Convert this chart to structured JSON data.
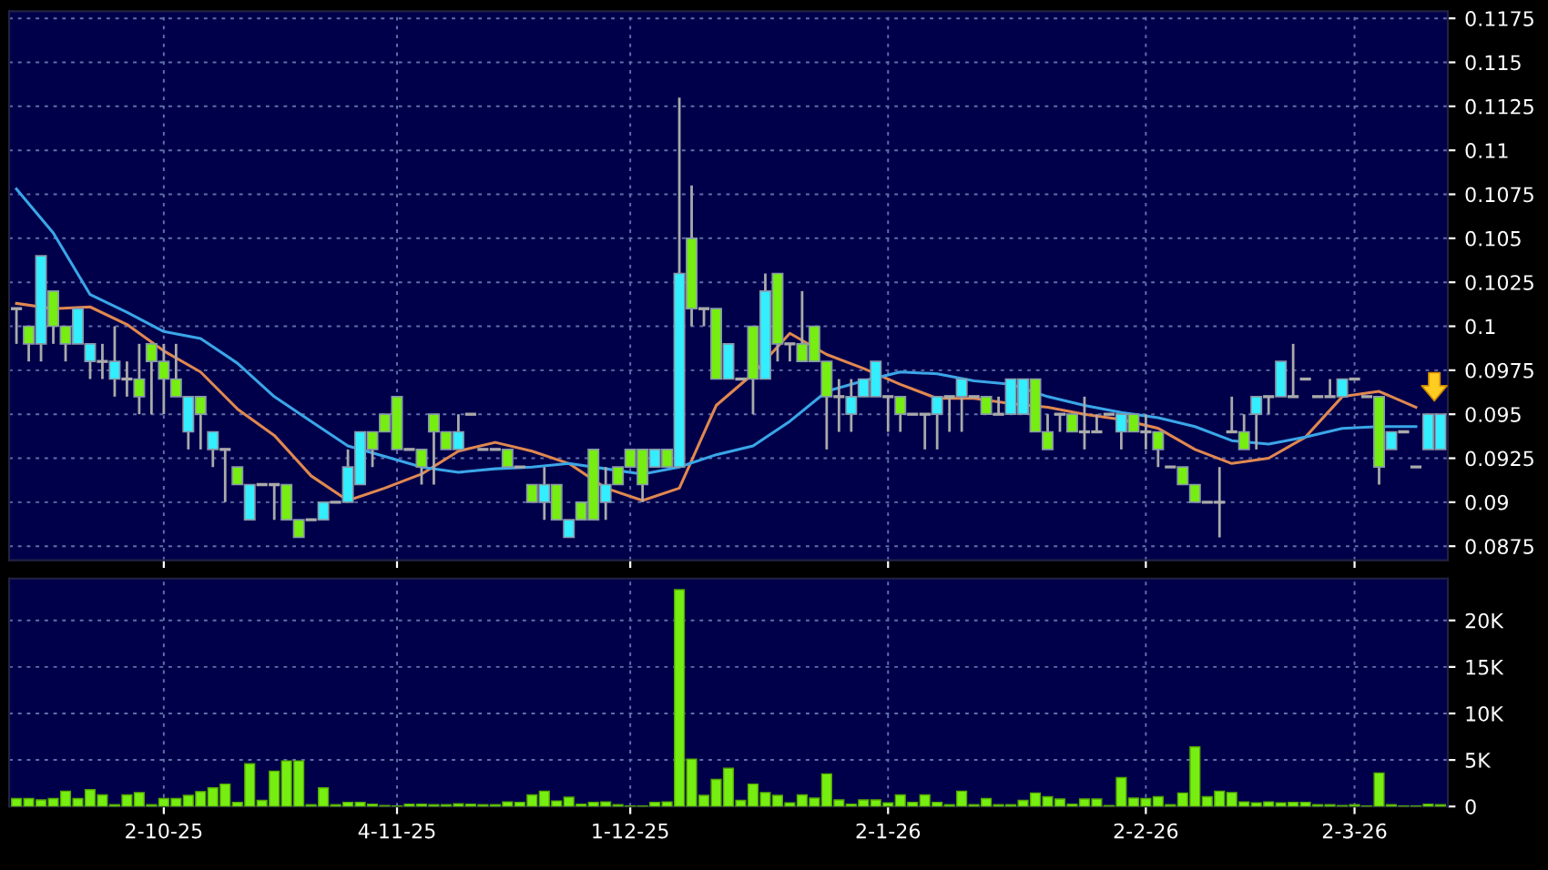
{
  "chart_data": [
    {
      "type": "candlestick",
      "tick_labels": "y",
      "grid": true,
      "categories": [
        null,
        null,
        null,
        null,
        null,
        null,
        null,
        null,
        null,
        null,
        null,
        null,
        null,
        null,
        null,
        null,
        null,
        null,
        null,
        null,
        null,
        null,
        null,
        null,
        null,
        null,
        null,
        null,
        null,
        null,
        null,
        null,
        null,
        null,
        null,
        null,
        null,
        null,
        null,
        null,
        null,
        null,
        null,
        null,
        null,
        null,
        null,
        null,
        null,
        null,
        null,
        null,
        null,
        null,
        null,
        null,
        null,
        null,
        null,
        null,
        null,
        null,
        null,
        null,
        null,
        null,
        null,
        null,
        null,
        null,
        null,
        null,
        null,
        null,
        null,
        null,
        null,
        null,
        null,
        null,
        null,
        null,
        null,
        null,
        null,
        null,
        null,
        null,
        null,
        null,
        null,
        null,
        null,
        null,
        null,
        null,
        null,
        null,
        null,
        null,
        null,
        null,
        null,
        null,
        null,
        null,
        null,
        null,
        null,
        null,
        null,
        null,
        null,
        null,
        null,
        null,
        null
      ],
      "ylim": [
        0.0867,
        0.1179
      ],
      "yticks": [
        0.0875,
        0.09,
        0.0925,
        0.095,
        0.0975,
        0.1,
        0.1025,
        0.105,
        0.1075,
        0.11,
        0.1125,
        0.115,
        0.1175
      ],
      "ohlc": [
        [
          0.101,
          0.101,
          0.099,
          0.101
        ],
        [
          0.1,
          0.1,
          0.098,
          0.099
        ],
        [
          0.099,
          0.104,
          0.098,
          0.104
        ],
        [
          0.102,
          0.102,
          0.099,
          0.1
        ],
        [
          0.1,
          0.1,
          0.098,
          0.099
        ],
        [
          0.099,
          0.101,
          0.099,
          0.101
        ],
        [
          0.098,
          0.099,
          0.097,
          0.099
        ],
        [
          0.098,
          0.099,
          0.097,
          0.098
        ],
        [
          0.097,
          0.1,
          0.096,
          0.098
        ],
        [
          0.097,
          0.098,
          0.096,
          0.097
        ],
        [
          0.097,
          0.099,
          0.095,
          0.096
        ],
        [
          0.099,
          0.099,
          0.095,
          0.098
        ],
        [
          0.098,
          0.099,
          0.095,
          0.097
        ],
        [
          0.097,
          0.099,
          0.096,
          0.096
        ],
        [
          0.094,
          0.096,
          0.093,
          0.096
        ],
        [
          0.096,
          0.096,
          0.093,
          0.095
        ],
        [
          0.093,
          0.094,
          0.092,
          0.094
        ],
        [
          0.093,
          0.093,
          0.09,
          0.093
        ],
        [
          0.092,
          0.092,
          0.091,
          0.091
        ],
        [
          0.089,
          0.091,
          0.089,
          0.091
        ],
        [
          0.091,
          0.091,
          0.091,
          0.091
        ],
        [
          0.091,
          0.091,
          0.089,
          0.091
        ],
        [
          0.091,
          0.091,
          0.089,
          0.089
        ],
        [
          0.089,
          0.089,
          0.088,
          0.088
        ],
        [
          0.089,
          0.089,
          0.089,
          0.089
        ],
        [
          0.089,
          0.09,
          0.089,
          0.09
        ],
        [
          0.09,
          0.09,
          0.09,
          0.09
        ],
        [
          0.09,
          0.093,
          0.09,
          0.092
        ],
        [
          0.091,
          0.094,
          0.091,
          0.094
        ],
        [
          0.094,
          0.094,
          0.092,
          0.093
        ],
        [
          0.095,
          0.095,
          0.094,
          0.094
        ],
        [
          0.096,
          0.096,
          0.093,
          0.093
        ],
        [
          0.093,
          0.093,
          0.093,
          0.093
        ],
        [
          0.093,
          0.093,
          0.091,
          0.092
        ],
        [
          0.095,
          0.095,
          0.091,
          0.094
        ],
        [
          0.094,
          0.094,
          0.093,
          0.093
        ],
        [
          0.093,
          0.095,
          0.093,
          0.094
        ],
        [
          0.095,
          0.095,
          0.095,
          0.095
        ],
        [
          0.093,
          0.093,
          0.093,
          0.093
        ],
        [
          0.093,
          0.093,
          0.093,
          0.093
        ],
        [
          0.093,
          0.093,
          0.092,
          0.092
        ],
        [
          0.092,
          0.092,
          0.092,
          0.092
        ],
        [
          0.091,
          0.091,
          0.09,
          0.09
        ],
        [
          0.09,
          0.092,
          0.089,
          0.091
        ],
        [
          0.091,
          0.091,
          0.089,
          0.089
        ],
        [
          0.088,
          0.089,
          0.088,
          0.089
        ],
        [
          0.09,
          0.09,
          0.089,
          0.089
        ],
        [
          0.093,
          0.093,
          0.089,
          0.089
        ],
        [
          0.09,
          0.092,
          0.089,
          0.091
        ],
        [
          0.092,
          0.092,
          0.091,
          0.091
        ],
        [
          0.093,
          0.093,
          0.092,
          0.092
        ],
        [
          0.093,
          0.093,
          0.09,
          0.091
        ],
        [
          0.092,
          0.093,
          0.092,
          0.093
        ],
        [
          0.093,
          0.093,
          0.092,
          0.092
        ],
        [
          0.092,
          0.113,
          0.092,
          0.103
        ],
        [
          0.105,
          0.108,
          0.1,
          0.101
        ],
        [
          0.101,
          0.101,
          0.1,
          0.101
        ],
        [
          0.101,
          0.101,
          0.097,
          0.097
        ],
        [
          0.097,
          0.099,
          0.097,
          0.099
        ],
        [
          0.097,
          0.097,
          0.097,
          0.097
        ],
        [
          0.1,
          0.1,
          0.095,
          0.097
        ],
        [
          0.097,
          0.103,
          0.097,
          0.102
        ],
        [
          0.103,
          0.103,
          0.098,
          0.099
        ],
        [
          0.099,
          0.099,
          0.098,
          0.099
        ],
        [
          0.099,
          0.102,
          0.098,
          0.098
        ],
        [
          0.1,
          0.1,
          0.098,
          0.098
        ],
        [
          0.098,
          0.098,
          0.093,
          0.096
        ],
        [
          0.096,
          0.097,
          0.094,
          0.096
        ],
        [
          0.095,
          0.097,
          0.094,
          0.096
        ],
        [
          0.096,
          0.097,
          0.096,
          0.097
        ],
        [
          0.096,
          0.098,
          0.096,
          0.098
        ],
        [
          0.096,
          0.096,
          0.094,
          0.096
        ],
        [
          0.096,
          0.096,
          0.094,
          0.095
        ],
        [
          0.095,
          0.095,
          0.095,
          0.095
        ],
        [
          0.095,
          0.095,
          0.093,
          0.095
        ],
        [
          0.095,
          0.096,
          0.093,
          0.096
        ],
        [
          0.096,
          0.096,
          0.094,
          0.096
        ],
        [
          0.096,
          0.097,
          0.094,
          0.097
        ],
        [
          0.096,
          0.096,
          0.096,
          0.096
        ],
        [
          0.096,
          0.096,
          0.095,
          0.095
        ],
        [
          0.095,
          0.096,
          0.095,
          0.095
        ],
        [
          0.095,
          0.097,
          0.095,
          0.097
        ],
        [
          0.095,
          0.097,
          0.095,
          0.097
        ],
        [
          0.097,
          0.097,
          0.094,
          0.094
        ],
        [
          0.094,
          0.095,
          0.093,
          0.093
        ],
        [
          0.095,
          0.095,
          0.094,
          0.095
        ],
        [
          0.095,
          0.095,
          0.094,
          0.094
        ],
        [
          0.094,
          0.096,
          0.093,
          0.094
        ],
        [
          0.094,
          0.095,
          0.094,
          0.094
        ],
        [
          0.095,
          0.095,
          0.095,
          0.095
        ],
        [
          0.094,
          0.095,
          0.093,
          0.095
        ],
        [
          0.095,
          0.095,
          0.094,
          0.094
        ],
        [
          0.094,
          0.095,
          0.093,
          0.094
        ],
        [
          0.094,
          0.094,
          0.092,
          0.093
        ],
        [
          0.092,
          0.092,
          0.092,
          0.092
        ],
        [
          0.092,
          0.092,
          0.091,
          0.091
        ],
        [
          0.091,
          0.091,
          0.09,
          0.09
        ],
        [
          0.09,
          0.09,
          0.09,
          0.09
        ],
        [
          0.09,
          0.092,
          0.088,
          0.09
        ],
        [
          0.094,
          0.096,
          0.094,
          0.094
        ],
        [
          0.094,
          0.095,
          0.093,
          0.093
        ],
        [
          0.095,
          0.096,
          0.093,
          0.096
        ],
        [
          0.096,
          0.096,
          0.095,
          0.096
        ],
        [
          0.096,
          0.098,
          0.096,
          0.098
        ],
        [
          0.096,
          0.099,
          0.096,
          0.096
        ],
        [
          0.097,
          0.097,
          0.097,
          0.097
        ],
        [
          0.096,
          0.096,
          0.096,
          0.096
        ],
        [
          0.096,
          0.097,
          0.096,
          0.096
        ],
        [
          0.096,
          0.097,
          0.096,
          0.097
        ],
        [
          0.097,
          0.097,
          0.097,
          0.097
        ],
        [
          0.096,
          0.096,
          0.096,
          0.096
        ],
        [
          0.096,
          0.096,
          0.091,
          0.092
        ],
        [
          0.093,
          0.094,
          0.093,
          0.094
        ],
        [
          0.094,
          0.094,
          0.094,
          0.094
        ],
        [
          0.092,
          0.092,
          0.092,
          0.092
        ],
        [
          0.093,
          0.095,
          0.093,
          0.095
        ],
        [
          0.093,
          0.095,
          0.093,
          0.095
        ]
      ],
      "colors": [
        "#aaaaaa",
        "#77ee11",
        "#33eeff",
        "#77ee11",
        "#77ee11",
        "#33eeff",
        "#33eeff",
        "#aaaaaa",
        "#33eeff",
        "#aaaaaa",
        "#77ee11",
        "#77ee11",
        "#77ee11",
        "#77ee11",
        "#33eeff",
        "#77ee11",
        "#33eeff",
        "#aaaaaa",
        "#77ee11",
        "#33eeff",
        "#aaaaaa",
        "#aaaaaa",
        "#77ee11",
        "#77ee11",
        "#aaaaaa",
        "#33eeff",
        "#aaaaaa",
        "#33eeff",
        "#33eeff",
        "#77ee11",
        "#77ee11",
        "#77ee11",
        "#aaaaaa",
        "#77ee11",
        "#77ee11",
        "#77ee11",
        "#33eeff",
        "#aaaaaa",
        "#aaaaaa",
        "#aaaaaa",
        "#77ee11",
        "#aaaaaa",
        "#77ee11",
        "#33eeff",
        "#77ee11",
        "#33eeff",
        "#77ee11",
        "#77ee11",
        "#33eeff",
        "#77ee11",
        "#77ee11",
        "#77ee11",
        "#33eeff",
        "#77ee11",
        "#33eeff",
        "#77ee11",
        "#aaaaaa",
        "#77ee11",
        "#33eeff",
        "#aaaaaa",
        "#77ee11",
        "#33eeff",
        "#77ee11",
        "#aaaaaa",
        "#77ee11",
        "#77ee11",
        "#77ee11",
        "#aaaaaa",
        "#33eeff",
        "#33eeff",
        "#33eeff",
        "#aaaaaa",
        "#77ee11",
        "#aaaaaa",
        "#aaaaaa",
        "#33eeff",
        "#aaaaaa",
        "#33eeff",
        "#aaaaaa",
        "#77ee11",
        "#aaaaaa",
        "#33eeff",
        "#33eeff",
        "#77ee11",
        "#77ee11",
        "#aaaaaa",
        "#77ee11",
        "#aaaaaa",
        "#aaaaaa",
        "#aaaaaa",
        "#33eeff",
        "#77ee11",
        "#aaaaaa",
        "#77ee11",
        "#aaaaaa",
        "#77ee11",
        "#77ee11",
        "#aaaaaa",
        "#aaaaaa",
        "#aaaaaa",
        "#77ee11",
        "#33eeff",
        "#aaaaaa",
        "#33eeff",
        "#aaaaaa",
        "#aaaaaa",
        "#aaaaaa",
        "#aaaaaa",
        "#33eeff",
        "#aaaaaa",
        "#aaaaaa",
        "#77ee11",
        "#33eeff",
        "#aaaaaa",
        "#aaaaaa",
        "#33eeff",
        "#33eeff"
      ],
      "series": [
        {
          "type": "line",
          "color": "#e08850",
          "values": [
            0.1013,
            null,
            null,
            0.101,
            null,
            null,
            0.1011,
            null,
            null,
            0.1001,
            null,
            null,
            0.0986,
            null,
            null,
            0.0974,
            null,
            null,
            0.0953,
            null,
            null,
            0.0938,
            null,
            null,
            0.0915,
            null,
            null,
            0.0901,
            null,
            null,
            0.0908,
            null,
            null,
            0.0916,
            null,
            null,
            0.0929,
            null,
            null,
            0.0934,
            null,
            null,
            0.0929,
            null,
            null,
            0.0922,
            null,
            null,
            0.0908,
            null,
            null,
            0.0901,
            null,
            null,
            0.0908,
            null,
            null,
            0.0955,
            null,
            null,
            0.0973,
            null,
            null,
            0.0996,
            null,
            null,
            0.0984,
            null,
            null,
            0.0976,
            null,
            null,
            0.0967,
            null,
            null,
            0.0959,
            null,
            null,
            0.0959,
            null,
            null,
            0.0956,
            null,
            null,
            0.0954,
            null,
            null,
            0.095,
            null,
            null,
            0.0947,
            null,
            null,
            0.0942,
            null,
            null,
            0.093,
            null,
            null,
            0.0922,
            null,
            null,
            0.0925,
            null,
            null,
            0.0937,
            null,
            null,
            0.096,
            null,
            null,
            0.0963,
            null,
            null,
            0.0954,
            null,
            null
          ]
        },
        {
          "type": "line",
          "color": "#3aa6e8",
          "values": [
            0.1078,
            null,
            null,
            0.1053,
            null,
            null,
            0.1018,
            null,
            null,
            0.1008,
            null,
            null,
            0.0997,
            null,
            null,
            0.0993,
            null,
            null,
            0.0979,
            null,
            null,
            0.096,
            null,
            null,
            0.0946,
            null,
            null,
            0.0932,
            null,
            null,
            0.0926,
            null,
            null,
            0.092,
            null,
            null,
            0.0917,
            null,
            null,
            0.0919,
            null,
            null,
            0.092,
            null,
            null,
            0.0922,
            null,
            null,
            0.0919,
            null,
            null,
            0.0916,
            null,
            null,
            0.092,
            null,
            null,
            0.0927,
            null,
            null,
            0.0932,
            null,
            null,
            0.0946,
            null,
            null,
            0.0963,
            null,
            null,
            0.0969,
            null,
            null,
            0.0974,
            null,
            null,
            0.0973,
            null,
            null,
            0.0969,
            null,
            null,
            0.0967,
            null,
            null,
            0.096,
            null,
            null,
            0.0955,
            null,
            null,
            0.0951,
            null,
            null,
            0.0948,
            null,
            null,
            0.0943,
            null,
            null,
            0.0935,
            null,
            null,
            0.0933,
            null,
            null,
            0.0937,
            null,
            null,
            0.0942,
            null,
            null,
            0.0943,
            null,
            null,
            0.0943,
            null,
            null
          ]
        }
      ]
    },
    {
      "type": "bar",
      "grid": true,
      "color": "#77ee11",
      "categories": [
        null,
        null,
        null,
        null,
        null,
        null,
        null,
        null,
        null,
        null,
        null,
        null,
        "2-10-25",
        null,
        null,
        null,
        null,
        null,
        null,
        null,
        null,
        null,
        null,
        null,
        null,
        null,
        null,
        null,
        null,
        null,
        null,
        "4-11-25",
        null,
        null,
        null,
        null,
        null,
        null,
        null,
        null,
        null,
        null,
        null,
        null,
        null,
        null,
        null,
        null,
        null,
        null,
        "1-12-25",
        null,
        null,
        null,
        null,
        null,
        null,
        null,
        null,
        null,
        null,
        null,
        null,
        null,
        null,
        null,
        null,
        null,
        null,
        null,
        null,
        "2-1-26",
        null,
        null,
        null,
        null,
        null,
        null,
        null,
        null,
        null,
        null,
        null,
        null,
        null,
        null,
        null,
        null,
        null,
        null,
        null,
        null,
        "2-2-26",
        null,
        null,
        null,
        null,
        null,
        null,
        null,
        null,
        null,
        null,
        null,
        null,
        null,
        null,
        null,
        null,
        "2-3-26",
        null,
        null,
        null,
        null,
        null,
        null,
        null
      ],
      "ylim": [
        0,
        24500
      ],
      "yticks": [
        0,
        {
          "value": 5000,
          "label": "5K"
        },
        {
          "value": 10000,
          "label": "10K"
        },
        {
          "value": 15000,
          "label": "15K"
        },
        {
          "value": 20000,
          "label": "20K"
        }
      ],
      "values": [
        850,
        850,
        700,
        850,
        1650,
        850,
        1800,
        1250,
        200,
        1250,
        1500,
        200,
        850,
        850,
        1200,
        1600,
        2000,
        2400,
        450,
        4600,
        650,
        3800,
        4900,
        4900,
        200,
        2000,
        200,
        450,
        450,
        250,
        100,
        50,
        250,
        250,
        200,
        200,
        300,
        250,
        200,
        200,
        500,
        450,
        1250,
        1650,
        600,
        1000,
        250,
        450,
        500,
        200,
        50,
        50,
        450,
        500,
        23300,
        5100,
        1200,
        2900,
        4100,
        650,
        2400,
        1500,
        1200,
        400,
        1250,
        900,
        3500,
        700,
        250,
        700,
        700,
        400,
        1250,
        450,
        1250,
        450,
        200,
        1650,
        200,
        850,
        200,
        200,
        650,
        1450,
        1050,
        800,
        250,
        800,
        800,
        100,
        3100,
        900,
        850,
        1050,
        200,
        1450,
        6400,
        1050,
        1650,
        1500,
        500,
        400,
        500,
        400,
        450,
        450,
        200,
        200,
        100,
        200,
        50,
        3600,
        200,
        50,
        50,
        250,
        200
      ]
    }
  ]
}
